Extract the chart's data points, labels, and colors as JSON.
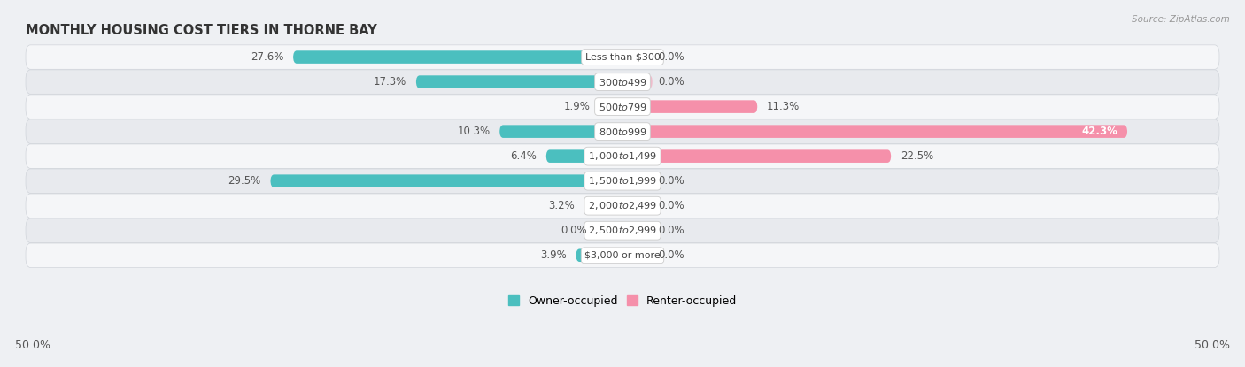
{
  "title": "MONTHLY HOUSING COST TIERS IN THORNE BAY",
  "source": "Source: ZipAtlas.com",
  "categories": [
    "Less than $300",
    "$300 to $499",
    "$500 to $799",
    "$800 to $999",
    "$1,000 to $1,499",
    "$1,500 to $1,999",
    "$2,000 to $2,499",
    "$2,500 to $2,999",
    "$3,000 or more"
  ],
  "owner_values": [
    27.6,
    17.3,
    1.9,
    10.3,
    6.4,
    29.5,
    3.2,
    0.0,
    3.9
  ],
  "renter_values": [
    0.0,
    0.0,
    11.3,
    42.3,
    22.5,
    0.0,
    0.0,
    0.0,
    0.0
  ],
  "owner_color": "#4bbfbf",
  "renter_color": "#f590aa",
  "bg_color": "#eef0f3",
  "row_colors": [
    "#f5f6f8",
    "#e8eaee"
  ],
  "axis_limit": 50.0,
  "label_fontsize": 8.5,
  "title_fontsize": 10.5,
  "bar_height": 0.52,
  "min_bar_show": 2.5,
  "owner_label": "Owner-occupied",
  "renter_label": "Renter-occupied"
}
